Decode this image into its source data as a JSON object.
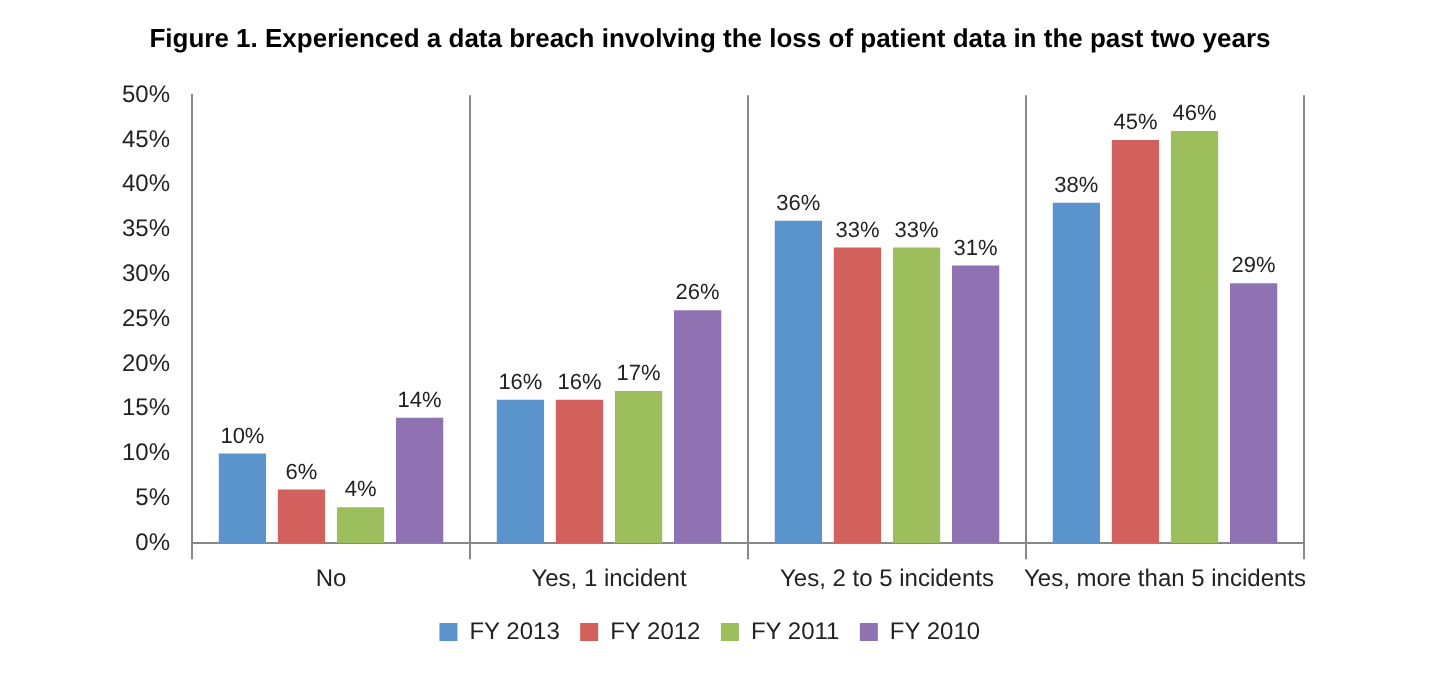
{
  "chart_data": {
    "type": "bar",
    "title": "Figure 1. Experienced a data breach involving the loss of patient data in the past two years",
    "categories": [
      "No",
      "Yes, 1 incident",
      "Yes, 2 to 5 incidents",
      "Yes, more than 5 incidents"
    ],
    "series": [
      {
        "name": "FY 2013",
        "color": "#5b93cc",
        "values": [
          10,
          16,
          36,
          38
        ],
        "value_labels": [
          "10%",
          "16%",
          "36%",
          "38%"
        ]
      },
      {
        "name": "FY 2012",
        "color": "#d2605c",
        "values": [
          6,
          16,
          33,
          45
        ],
        "value_labels": [
          "6%",
          "16%",
          "33%",
          "45%"
        ]
      },
      {
        "name": "FY 2011",
        "color": "#9cbe5d",
        "values": [
          4,
          17,
          33,
          46
        ],
        "value_labels": [
          "4%",
          "17%",
          "33%",
          "46%"
        ]
      },
      {
        "name": "FY 2010",
        "color": "#8f72b2",
        "values": [
          14,
          26,
          31,
          29
        ],
        "value_labels": [
          "14%",
          "26%",
          "31%",
          "29%"
        ]
      }
    ],
    "ylim": [
      0,
      50
    ],
    "yticks": [
      {
        "value": 0,
        "label": "0%"
      },
      {
        "value": 5,
        "label": "5%"
      },
      {
        "value": 10,
        "label": "10%"
      },
      {
        "value": 15,
        "label": "15%"
      },
      {
        "value": 20,
        "label": "20%"
      },
      {
        "value": 25,
        "label": "25%"
      },
      {
        "value": 30,
        "label": "30%"
      },
      {
        "value": 35,
        "label": "35%"
      },
      {
        "value": 40,
        "label": "40%"
      },
      {
        "value": 45,
        "label": "45%"
      },
      {
        "value": 50,
        "label": "50%"
      }
    ],
    "grid": "x",
    "legend": "bottom"
  }
}
